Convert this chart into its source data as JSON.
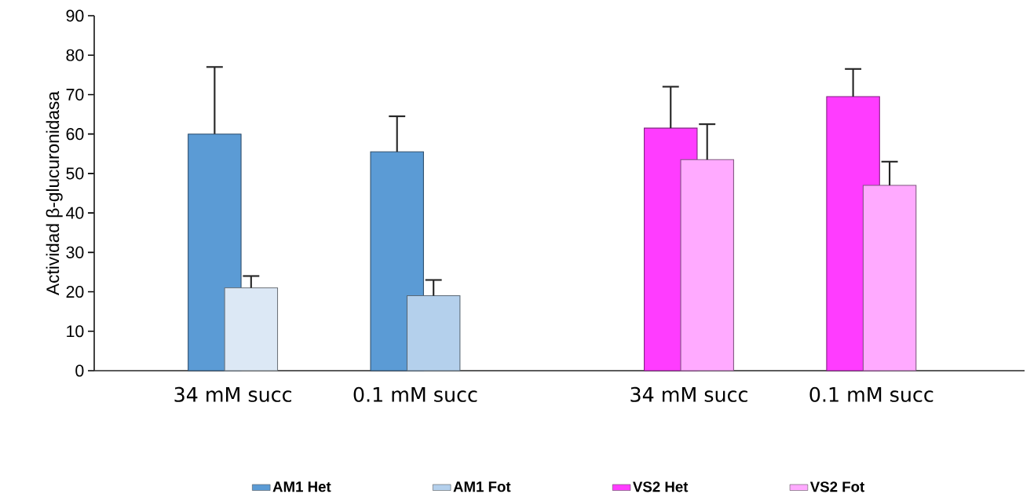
{
  "chart_data": {
    "type": "bar",
    "ylabel": "Actividad β-glucuronidasa",
    "categories": [
      "34 mM succ",
      "0.1 mM succ",
      "34 mM succ",
      "0.1 mM succ"
    ],
    "series": [
      {
        "name": "AM1 Het",
        "color": "#5b9bd5",
        "values": [
          60,
          55.5,
          null,
          null
        ],
        "errors": [
          [
            60,
            77
          ],
          [
            55.5,
            64.5
          ],
          null,
          null
        ]
      },
      {
        "name": "AM1 Fot",
        "color": "#b4d0ec",
        "colors": [
          "#dce8f5",
          "#b4d0ec",
          null,
          null
        ],
        "values": [
          21,
          19,
          null,
          null
        ],
        "errors": [
          [
            21,
            24
          ],
          [
            19,
            23
          ],
          null,
          null
        ]
      },
      {
        "name": "VS2 Het",
        "color": "#ff3cff",
        "values": [
          null,
          null,
          61.5,
          69.5
        ],
        "errors": [
          null,
          null,
          [
            61.5,
            72
          ],
          [
            69.5,
            76.5
          ]
        ]
      },
      {
        "name": "VS2 Fot",
        "color": "#ffaaff",
        "values": [
          null,
          null,
          53.5,
          47
        ],
        "errors": [
          null,
          null,
          [
            53.5,
            62.5
          ],
          [
            47,
            53
          ]
        ]
      }
    ],
    "ylim": [
      0,
      90
    ],
    "yticks": [
      0,
      10,
      20,
      30,
      40,
      50,
      60,
      70,
      80,
      90
    ],
    "legend": "bottom"
  }
}
